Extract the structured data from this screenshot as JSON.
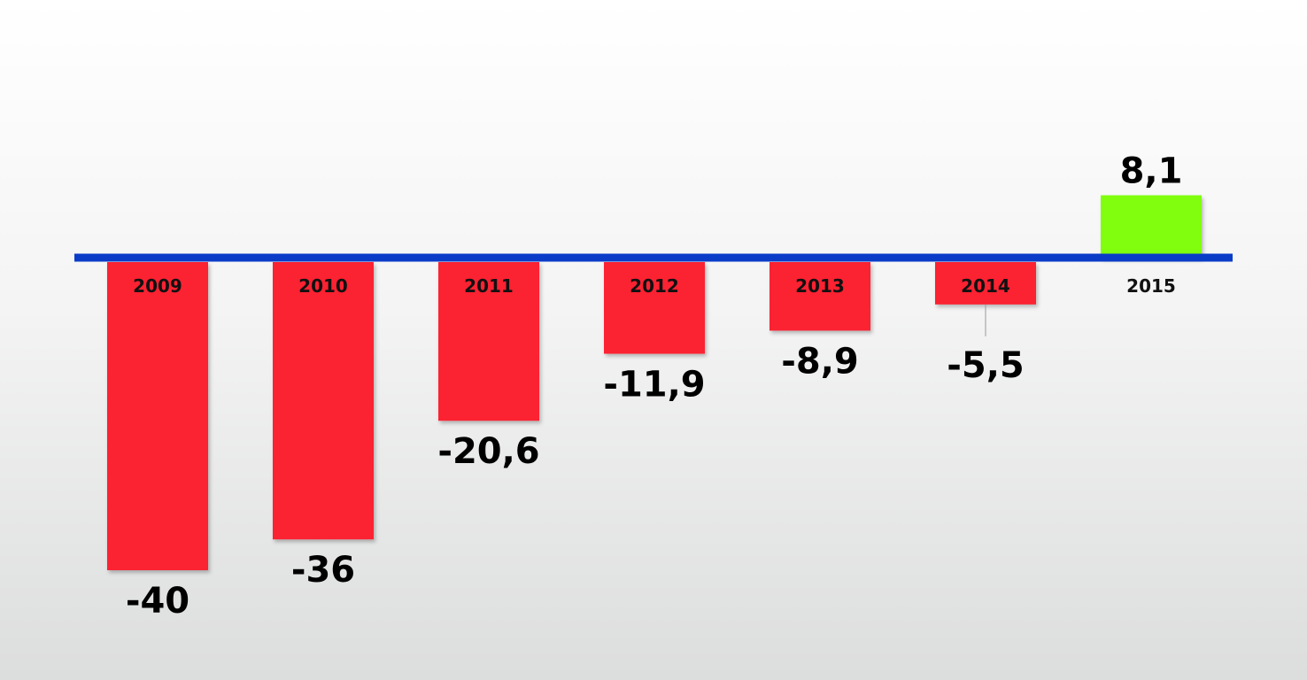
{
  "chart_data": {
    "type": "bar",
    "categories": [
      "2009",
      "2010",
      "2011",
      "2012",
      "2013",
      "2014",
      "2015"
    ],
    "values": [
      -40,
      -36,
      -20.6,
      -11.9,
      -8.9,
      -5.5,
      8.1
    ],
    "value_labels": [
      "-40",
      "-36",
      "-20,6",
      "-11,9",
      "-8,9",
      "-5,5",
      "8,1"
    ],
    "title": "",
    "xlabel": "",
    "ylabel": "",
    "ylim": [
      -40,
      8.1
    ],
    "grid": false,
    "colors": {
      "negative": "#fb2130",
      "positive": "#80fe0f",
      "baseline": "#0a3cc8"
    }
  }
}
